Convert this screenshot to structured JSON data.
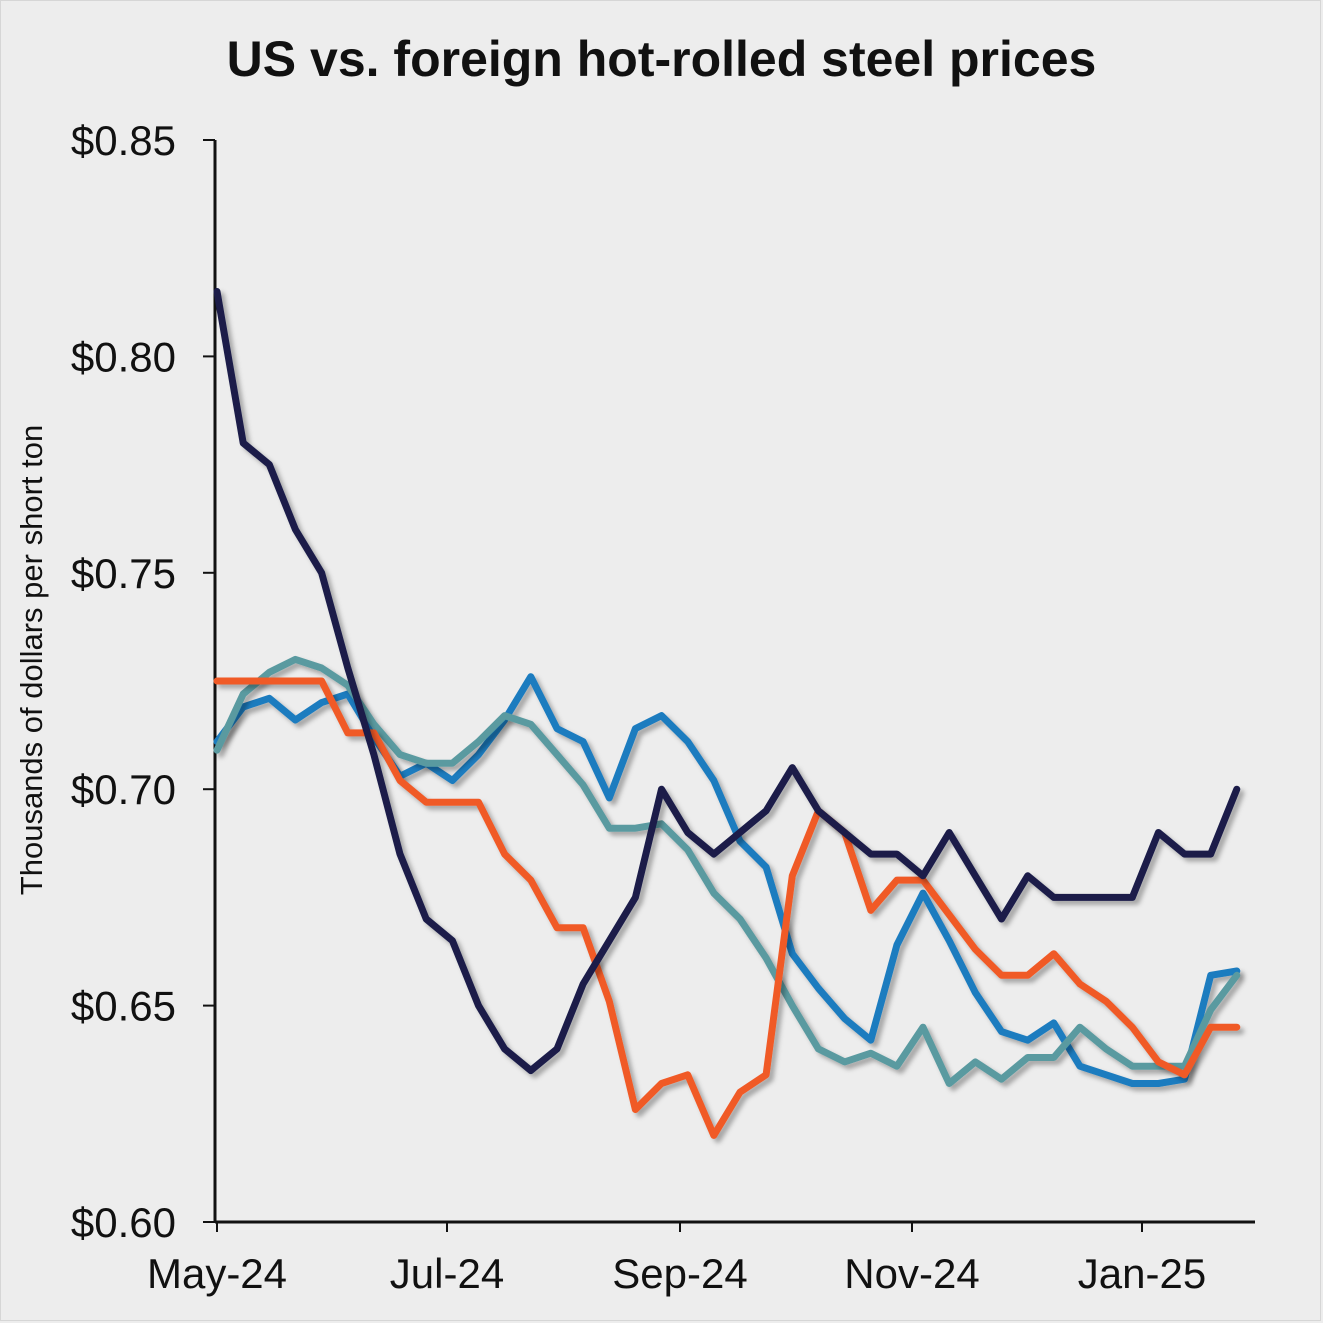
{
  "chart_data": {
    "type": "line",
    "title": "US vs. foreign hot-rolled steel prices",
    "xlabel": "",
    "ylabel": "Thousands of dollars per short ton",
    "ylim": [
      0.6,
      0.85
    ],
    "yticks": [
      "$0.60",
      "$0.65",
      "$0.70",
      "$0.75",
      "$0.80",
      "$0.85"
    ],
    "xticks": [
      "May-24",
      "Jul-24",
      "Sep-24",
      "Nov-24",
      "Jan-25"
    ],
    "grid": false,
    "legend": "none",
    "x_period": "weekly observations, May-24 to Jan-25 (40 points)",
    "series": [
      {
        "color": "#1b7bbf",
        "values": [
          0.711,
          0.719,
          0.721,
          0.716,
          0.72,
          0.722,
          0.712,
          0.703,
          0.706,
          0.702,
          0.708,
          0.716,
          0.726,
          0.714,
          0.711,
          0.698,
          0.714,
          0.717,
          0.711,
          0.702,
          0.688,
          0.682,
          0.662,
          0.654,
          0.647,
          0.642,
          0.664,
          0.676,
          0.665,
          0.653,
          0.644,
          0.642,
          0.646,
          0.636,
          0.634,
          0.632,
          0.632,
          0.633,
          0.657,
          0.658
        ]
      },
      {
        "color": "#5a9aa0",
        "values": [
          0.709,
          0.722,
          0.727,
          0.73,
          0.728,
          0.724,
          0.715,
          0.708,
          0.706,
          0.706,
          0.711,
          0.717,
          0.715,
          0.708,
          0.701,
          0.691,
          0.691,
          0.692,
          0.686,
          0.676,
          0.67,
          0.661,
          0.65,
          0.64,
          0.637,
          0.639,
          0.636,
          0.645,
          0.632,
          0.637,
          0.633,
          0.638,
          0.638,
          0.645,
          0.64,
          0.636,
          0.636,
          0.636,
          0.649,
          0.657
        ]
      },
      {
        "color": "#f05a28",
        "values": [
          0.725,
          0.725,
          0.725,
          0.725,
          0.725,
          0.713,
          0.713,
          0.702,
          0.697,
          0.697,
          0.697,
          0.685,
          0.679,
          0.668,
          0.668,
          0.651,
          0.626,
          0.632,
          0.634,
          0.62,
          0.63,
          0.634,
          0.68,
          0.695,
          0.69,
          0.672,
          0.679,
          0.679,
          0.671,
          0.663,
          0.657,
          0.657,
          0.662,
          0.655,
          0.651,
          0.645,
          0.637,
          0.634,
          0.645,
          0.645
        ]
      },
      {
        "color": "#1a1e4a",
        "values": [
          0.815,
          0.78,
          0.775,
          0.76,
          0.75,
          0.728,
          0.708,
          0.685,
          0.67,
          0.665,
          0.65,
          0.64,
          0.635,
          0.64,
          0.655,
          0.665,
          0.675,
          0.7,
          0.69,
          0.685,
          0.69,
          0.695,
          0.705,
          0.695,
          0.69,
          0.685,
          0.685,
          0.68,
          0.69,
          0.68,
          0.67,
          0.68,
          0.675,
          0.675,
          0.675,
          0.675,
          0.69,
          0.685,
          0.685,
          0.7
        ]
      }
    ]
  }
}
